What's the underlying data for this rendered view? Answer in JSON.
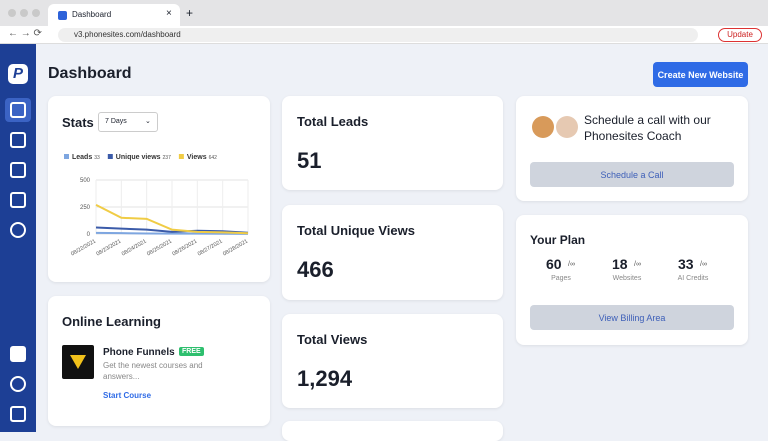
{
  "browser": {
    "tab_title": "Dashboard",
    "url": "v3.phonesites.com/dashboard",
    "update_button": "Update"
  },
  "header": {
    "title": "Dashboard",
    "button": "Create New Website"
  },
  "stats": {
    "title": "Stats",
    "range": "7 Days",
    "chart": {
      "type": "line",
      "categories": [
        "08/22/2021",
        "08/23/2021",
        "08/24/2021",
        "08/25/2021",
        "08/26/2021",
        "08/27/2021",
        "08/28/2021"
      ],
      "series": [
        {
          "name": "Leads",
          "total": "33",
          "color": "#7ea6e0",
          "values": [
            10,
            8,
            5,
            3,
            4,
            2,
            1
          ]
        },
        {
          "name": "Unique views",
          "total": "237",
          "color": "#3b5ba9",
          "values": [
            60,
            50,
            40,
            20,
            30,
            25,
            12
          ]
        },
        {
          "name": "Views",
          "total": "642",
          "color": "#f0cc45",
          "values": [
            270,
            150,
            140,
            40,
            20,
            15,
            7
          ]
        }
      ],
      "ylim": [
        0,
        500
      ],
      "yticks": [
        0,
        250,
        500
      ],
      "grid": true
    }
  },
  "totals": [
    {
      "label": "Total Leads",
      "value": "51"
    },
    {
      "label": "Total Unique Views",
      "value": "466"
    },
    {
      "label": "Total Views",
      "value": "1,294"
    }
  ],
  "coach": {
    "text": "Schedule a call with our Phonesites Coach",
    "button": "Schedule a Call"
  },
  "plan": {
    "title": "Your Plan",
    "items": [
      {
        "value": "60",
        "unit": "/∞",
        "label": "Pages"
      },
      {
        "value": "18",
        "unit": "/∞",
        "label": "Websites"
      },
      {
        "value": "33",
        "unit": "/∞",
        "label": "AI Credits"
      }
    ],
    "button": "View Billing Area"
  },
  "learning": {
    "title": "Online Learning",
    "course": {
      "title": "Phone Funnels",
      "badge": "FREE",
      "description": "Get the newest courses and answers...",
      "link": "Start Course"
    }
  }
}
